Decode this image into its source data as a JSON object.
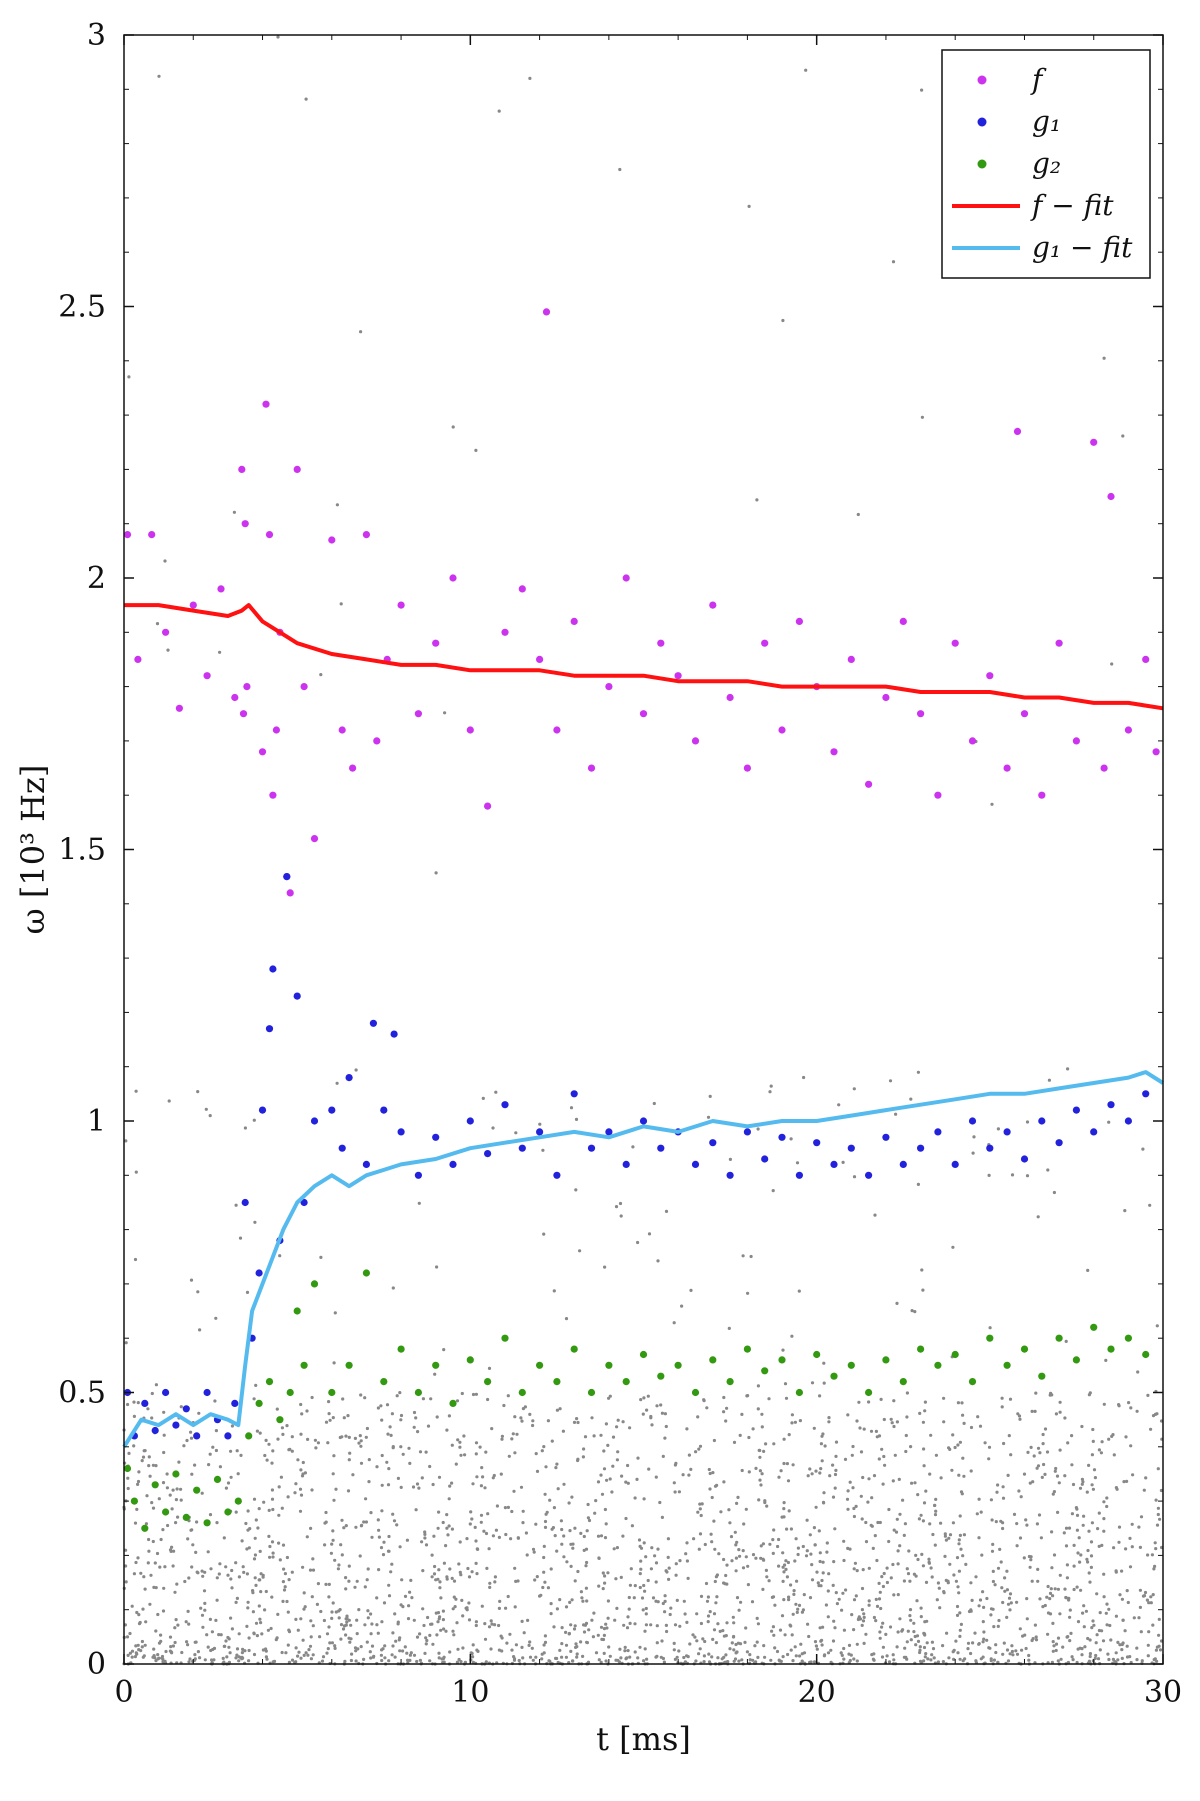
{
  "chart_data": {
    "type": "scatter",
    "xlabel": "t  [ms]",
    "ylabel": "ω  [10³ Hz]",
    "xlim": [
      0,
      30
    ],
    "ylim": [
      0,
      3
    ],
    "xticks": [
      0,
      10,
      20,
      30
    ],
    "xtick_labels": [
      "0",
      "10",
      "20",
      "30"
    ],
    "yticks": [
      0,
      0.5,
      1,
      1.5,
      2,
      2.5,
      3
    ],
    "ytick_labels": [
      "0",
      "0.5",
      "1",
      "1.5",
      "2",
      "2.5",
      "3"
    ],
    "grid": false,
    "legend_position": "top-right",
    "legend": [
      {
        "label": "f",
        "kind": "marker",
        "color": "#cc33ee"
      },
      {
        "label": "g₁",
        "kind": "marker",
        "color": "#2222dd"
      },
      {
        "label": "g₂",
        "kind": "marker",
        "color": "#339911"
      },
      {
        "label": "f − fit",
        "kind": "line",
        "color": "#ff1111"
      },
      {
        "label": "g₁ − fit",
        "kind": "line",
        "color": "#55bbee"
      }
    ],
    "background_series": {
      "name": "",
      "color": "#888888",
      "description_values": "grey dense points filling 0–0.5 kHz across all t, sparse points up to 3 kHz"
    },
    "series": [
      {
        "name": "f",
        "kind": "scatter",
        "color": "#cc33ee",
        "x": [
          0.1,
          0.4,
          0.8,
          1.2,
          1.6,
          2.0,
          2.4,
          2.8,
          3.2,
          3.4,
          3.45,
          3.5,
          3.55,
          4.0,
          4.1,
          4.2,
          4.3,
          4.4,
          4.5,
          4.7,
          4.8,
          5.0,
          5.2,
          5.5,
          6.0,
          6.3,
          6.6,
          7.0,
          7.3,
          7.6,
          8.0,
          8.5,
          9.0,
          9.5,
          10.0,
          10.5,
          11.0,
          11.5,
          12.0,
          12.2,
          12.5,
          13.0,
          13.5,
          14.0,
          14.5,
          15.0,
          15.5,
          16.0,
          16.5,
          17.0,
          17.5,
          18.0,
          18.5,
          19.0,
          19.5,
          20.0,
          20.5,
          21.0,
          21.5,
          22.0,
          22.5,
          23.0,
          23.5,
          24.0,
          24.5,
          25.0,
          25.5,
          25.8,
          26.0,
          26.5,
          27.0,
          27.5,
          28.0,
          28.3,
          28.5,
          29.0,
          29.5,
          29.8
        ],
        "y": [
          2.08,
          1.85,
          2.08,
          1.9,
          1.76,
          1.95,
          1.82,
          1.98,
          1.78,
          2.2,
          1.75,
          2.1,
          1.8,
          1.68,
          2.32,
          2.08,
          1.6,
          1.72,
          1.9,
          1.45,
          1.42,
          2.2,
          1.8,
          1.52,
          2.07,
          1.72,
          1.65,
          2.08,
          1.7,
          1.85,
          1.95,
          1.75,
          1.88,
          2.0,
          1.72,
          1.58,
          1.9,
          1.98,
          1.85,
          2.49,
          1.72,
          1.92,
          1.65,
          1.8,
          2.0,
          1.75,
          1.88,
          1.82,
          1.7,
          1.95,
          1.78,
          1.65,
          1.88,
          1.72,
          1.92,
          1.8,
          1.68,
          1.85,
          1.62,
          1.78,
          1.92,
          1.75,
          1.6,
          1.88,
          1.7,
          1.82,
          1.65,
          2.27,
          1.75,
          1.6,
          1.88,
          1.7,
          2.25,
          1.65,
          2.15,
          1.72,
          1.85,
          1.68
        ]
      },
      {
        "name": "g₁",
        "kind": "scatter",
        "color": "#2222dd",
        "x": [
          0.1,
          0.3,
          0.6,
          0.9,
          1.2,
          1.5,
          1.8,
          2.1,
          2.4,
          2.7,
          3.0,
          3.2,
          3.5,
          3.7,
          3.9,
          4.0,
          4.2,
          4.3,
          4.5,
          4.7,
          5.0,
          5.2,
          5.5,
          6.0,
          6.3,
          6.5,
          7.0,
          7.2,
          7.5,
          7.8,
          8.0,
          8.5,
          9.0,
          9.5,
          10.0,
          10.5,
          11.0,
          11.5,
          12.0,
          12.5,
          13.0,
          13.5,
          14.0,
          14.5,
          15.0,
          15.5,
          16.0,
          16.5,
          17.0,
          17.5,
          18.0,
          18.5,
          19.0,
          19.5,
          20.0,
          20.5,
          21.0,
          21.5,
          22.0,
          22.5,
          23.0,
          23.5,
          24.0,
          24.5,
          25.0,
          25.5,
          26.0,
          26.5,
          27.0,
          27.5,
          28.0,
          28.5,
          29.0,
          29.5
        ],
        "y": [
          0.5,
          0.42,
          0.48,
          0.43,
          0.5,
          0.44,
          0.47,
          0.42,
          0.5,
          0.45,
          0.42,
          0.48,
          0.85,
          0.6,
          0.72,
          1.02,
          1.17,
          1.28,
          0.78,
          1.45,
          1.23,
          0.85,
          1.0,
          1.02,
          0.95,
          1.08,
          0.92,
          1.18,
          1.02,
          1.16,
          0.98,
          0.9,
          0.97,
          0.92,
          1.0,
          0.94,
          1.03,
          0.95,
          0.98,
          0.9,
          1.05,
          0.95,
          0.98,
          0.92,
          1.0,
          0.95,
          0.98,
          0.92,
          0.96,
          0.9,
          0.98,
          0.93,
          0.97,
          0.9,
          0.96,
          0.92,
          0.95,
          0.9,
          0.97,
          0.92,
          0.95,
          0.98,
          0.92,
          1.0,
          0.95,
          0.98,
          0.93,
          1.0,
          0.96,
          1.02,
          0.98,
          1.03,
          1.0,
          1.05
        ]
      },
      {
        "name": "g₂",
        "kind": "scatter",
        "color": "#339911",
        "x": [
          0.1,
          0.3,
          0.6,
          0.9,
          1.2,
          1.5,
          1.8,
          2.1,
          2.4,
          2.7,
          3.0,
          3.3,
          3.6,
          3.9,
          4.2,
          4.5,
          4.8,
          5.0,
          5.2,
          5.5,
          6.0,
          6.5,
          7.0,
          7.5,
          8.0,
          8.5,
          9.0,
          9.5,
          10.0,
          10.5,
          11.0,
          11.5,
          12.0,
          12.5,
          13.0,
          13.5,
          14.0,
          14.5,
          15.0,
          15.5,
          16.0,
          16.5,
          17.0,
          17.5,
          18.0,
          18.5,
          19.0,
          19.5,
          20.0,
          20.5,
          21.0,
          21.5,
          22.0,
          22.5,
          23.0,
          23.5,
          24.0,
          24.5,
          25.0,
          25.5,
          26.0,
          26.5,
          27.0,
          27.5,
          28.0,
          28.5,
          29.0,
          29.5
        ],
        "y": [
          0.36,
          0.3,
          0.25,
          0.33,
          0.28,
          0.35,
          0.27,
          0.32,
          0.26,
          0.34,
          0.28,
          0.3,
          0.42,
          0.48,
          0.52,
          0.45,
          0.5,
          0.65,
          0.55,
          0.7,
          0.5,
          0.55,
          0.72,
          0.52,
          0.58,
          0.5,
          0.55,
          0.48,
          0.56,
          0.52,
          0.6,
          0.5,
          0.55,
          0.52,
          0.58,
          0.5,
          0.55,
          0.52,
          0.57,
          0.53,
          0.55,
          0.5,
          0.56,
          0.52,
          0.58,
          0.54,
          0.56,
          0.5,
          0.57,
          0.53,
          0.55,
          0.5,
          0.56,
          0.52,
          0.58,
          0.55,
          0.57,
          0.52,
          0.6,
          0.55,
          0.58,
          0.53,
          0.6,
          0.56,
          0.62,
          0.58,
          0.6,
          0.57
        ]
      },
      {
        "name": "f − fit",
        "kind": "line",
        "color": "#ff1111",
        "x": [
          0.0,
          1.0,
          2.0,
          3.0,
          3.4,
          3.6,
          4.0,
          4.5,
          5.0,
          6.0,
          7.0,
          8.0,
          9.0,
          10.0,
          11.0,
          12.0,
          13.0,
          14.0,
          15.0,
          16.0,
          17.0,
          18.0,
          19.0,
          20.0,
          21.0,
          22.0,
          23.0,
          24.0,
          25.0,
          26.0,
          27.0,
          28.0,
          29.0,
          30.0
        ],
        "y": [
          1.95,
          1.95,
          1.94,
          1.93,
          1.94,
          1.95,
          1.92,
          1.9,
          1.88,
          1.86,
          1.85,
          1.84,
          1.84,
          1.83,
          1.83,
          1.83,
          1.82,
          1.82,
          1.82,
          1.81,
          1.81,
          1.81,
          1.8,
          1.8,
          1.8,
          1.8,
          1.79,
          1.79,
          1.79,
          1.78,
          1.78,
          1.77,
          1.77,
          1.76
        ]
      },
      {
        "name": "g₁ − fit",
        "kind": "line",
        "color": "#55bbee",
        "x": [
          0.0,
          0.5,
          1.0,
          1.5,
          2.0,
          2.5,
          3.0,
          3.3,
          3.5,
          3.7,
          4.0,
          4.3,
          4.6,
          5.0,
          5.5,
          6.0,
          6.5,
          7.0,
          7.5,
          8.0,
          9.0,
          10.0,
          11.0,
          12.0,
          13.0,
          14.0,
          15.0,
          16.0,
          17.0,
          18.0,
          19.0,
          20.0,
          21.0,
          22.0,
          23.0,
          24.0,
          25.0,
          26.0,
          27.0,
          28.0,
          29.0,
          29.5,
          30.0
        ],
        "y": [
          0.4,
          0.45,
          0.44,
          0.46,
          0.44,
          0.46,
          0.45,
          0.44,
          0.55,
          0.65,
          0.7,
          0.75,
          0.8,
          0.85,
          0.88,
          0.9,
          0.88,
          0.9,
          0.91,
          0.92,
          0.93,
          0.95,
          0.96,
          0.97,
          0.98,
          0.97,
          0.99,
          0.98,
          1.0,
          0.99,
          1.0,
          1.0,
          1.01,
          1.02,
          1.03,
          1.04,
          1.05,
          1.05,
          1.06,
          1.07,
          1.08,
          1.09,
          1.07
        ]
      }
    ]
  }
}
